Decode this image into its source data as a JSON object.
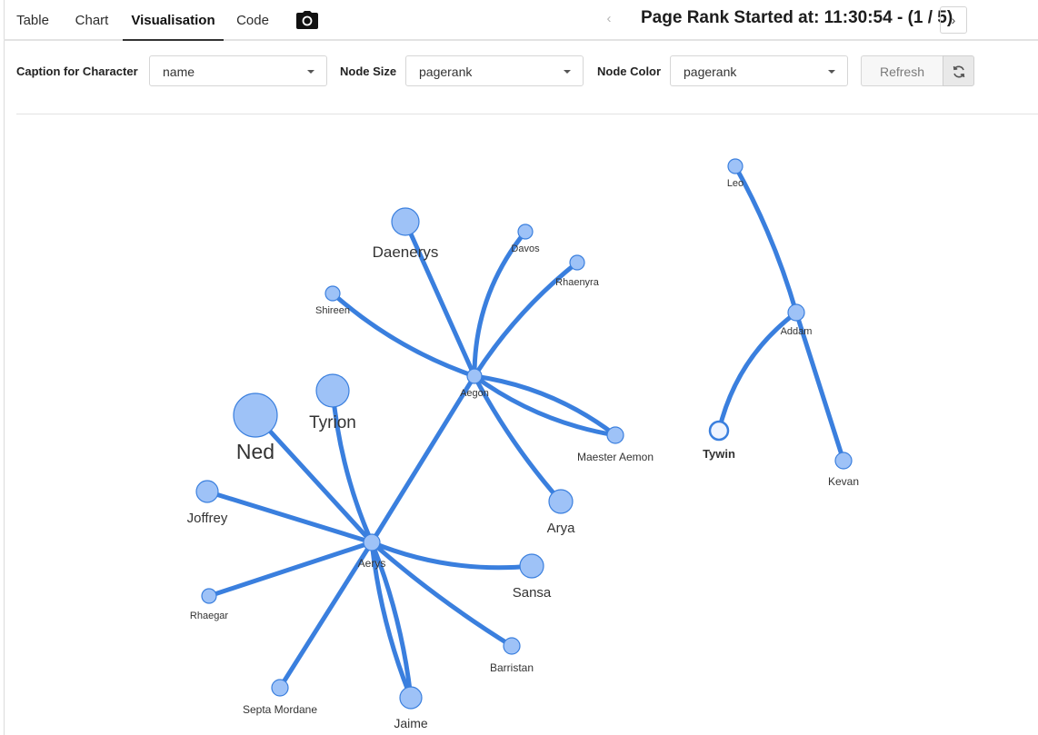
{
  "tabs": [
    {
      "label": "Table"
    },
    {
      "label": "Chart"
    },
    {
      "label": "Visualisation",
      "active": true
    },
    {
      "label": "Code"
    }
  ],
  "header": {
    "camera_icon": "camera-icon",
    "prev_icon": "chevron-left",
    "next_icon": "chevron-right",
    "title": "Page Rank Started at: 11:30:54 - (1 / 5)"
  },
  "controls": {
    "caption_label": "Caption for Character",
    "caption_value": "name",
    "size_label": "Node Size",
    "size_value": "pagerank",
    "color_label": "Node Color",
    "color_value": "pagerank",
    "refresh_label": "Refresh",
    "refresh_icon": "refresh-icon"
  },
  "colors": {
    "edge": "#3a7fde",
    "node_fill": "#9ec2f7",
    "node_stroke": "#3a7fde",
    "selected_fill": "#eef4ff"
  },
  "graph": {
    "nodes": [
      {
        "id": "Ned",
        "label": "Ned"
      },
      {
        "id": "Tyrion",
        "label": "Tyrion"
      },
      {
        "id": "Daenerys",
        "label": "Daenerys"
      },
      {
        "id": "Davos",
        "label": "Davos"
      },
      {
        "id": "Rhaenyra",
        "label": "Rhaenyra"
      },
      {
        "id": "Shireen",
        "label": "Shireen"
      },
      {
        "id": "Aegon",
        "label": "Aegon"
      },
      {
        "id": "Maester Aemon",
        "label": "Maester Aemon"
      },
      {
        "id": "Arya",
        "label": "Arya"
      },
      {
        "id": "Joffrey",
        "label": "Joffrey"
      },
      {
        "id": "Aerys",
        "label": "Aerys"
      },
      {
        "id": "Sansa",
        "label": "Sansa"
      },
      {
        "id": "Rhaegar",
        "label": "Rhaegar"
      },
      {
        "id": "Barristan",
        "label": "Barristan"
      },
      {
        "id": "Septa Mordane",
        "label": "Septa Mordane"
      },
      {
        "id": "Jaime",
        "label": "Jaime"
      },
      {
        "id": "Leo",
        "label": "Leo"
      },
      {
        "id": "Addam",
        "label": "Addam"
      },
      {
        "id": "Tywin",
        "label": "Tywin",
        "selected": true
      },
      {
        "id": "Kevan",
        "label": "Kevan"
      }
    ],
    "edges": [
      [
        "Daenerys",
        "Aegon"
      ],
      [
        "Davos",
        "Aegon"
      ],
      [
        "Rhaenyra",
        "Aegon"
      ],
      [
        "Shireen",
        "Aegon"
      ],
      [
        "Aegon",
        "Maester Aemon"
      ],
      [
        "Maester Aemon",
        "Aegon"
      ],
      [
        "Aegon",
        "Arya"
      ],
      [
        "Aegon",
        "Aerys"
      ],
      [
        "Ned",
        "Aerys"
      ],
      [
        "Tyrion",
        "Aerys"
      ],
      [
        "Joffrey",
        "Aerys"
      ],
      [
        "Rhaegar",
        "Aerys"
      ],
      [
        "Aerys",
        "Sansa"
      ],
      [
        "Aerys",
        "Barristan"
      ],
      [
        "Aerys",
        "Septa Mordane"
      ],
      [
        "Aerys",
        "Jaime"
      ],
      [
        "Jaime",
        "Aerys"
      ],
      [
        "Leo",
        "Addam"
      ],
      [
        "Addam",
        "Tywin"
      ],
      [
        "Addam",
        "Kevan"
      ]
    ]
  }
}
